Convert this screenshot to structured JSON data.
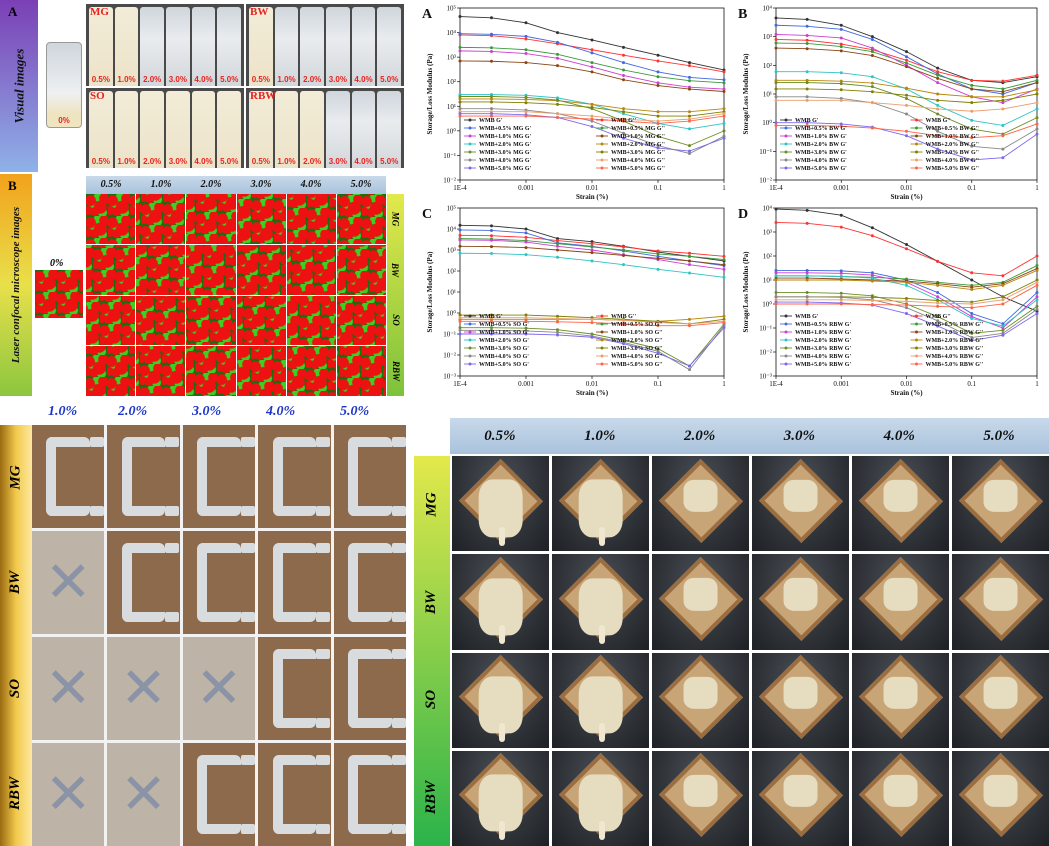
{
  "panelA": {
    "letter": "A",
    "side_label": "Visual images",
    "control_label": "0%",
    "groups": [
      {
        "name": "MG",
        "labels": [
          "0.5%",
          "1.0%",
          "2.0%",
          "3.0%",
          "4.0%",
          "5.0%"
        ]
      },
      {
        "name": "BW",
        "labels": [
          "0.5%",
          "1.0%",
          "2.0%",
          "3.0%",
          "4.0%",
          "5.0%"
        ]
      },
      {
        "name": "SO",
        "labels": [
          "0.5%",
          "1.0%",
          "2.0%",
          "3.0%",
          "4.0%",
          "5.0%"
        ]
      },
      {
        "name": "RBW",
        "labels": [
          "0.5%",
          "1.0%",
          "2.0%",
          "3.0%",
          "4.0%",
          "5.0%"
        ]
      }
    ]
  },
  "panelB": {
    "letter": "B",
    "side_label": "Laser confocal microscope images",
    "control_label": "0%",
    "columns": [
      "0.5%",
      "1.0%",
      "2.0%",
      "3.0%",
      "4.0%",
      "5.0%"
    ],
    "rows": [
      "MG",
      "BW",
      "SO",
      "RBW"
    ]
  },
  "colors": {
    "G_prime": [
      "#333333",
      "#4169e1",
      "#cc3fd1",
      "#2fc4c4",
      "#6b8e23",
      "#888888",
      "#7b68ee"
    ],
    "G_double": [
      "#ff3333",
      "#3a9a3a",
      "#8b4513",
      "#b8860b",
      "#808000",
      "#e8a070",
      "#ff6347"
    ]
  },
  "chart_data": [
    {
      "type": "line",
      "letter": "A",
      "xlabel": "Strain (%)",
      "ylabel": "Storage/Loss Modulus (Pa)",
      "x_scale": "log",
      "y_scale": "log",
      "xlim": [
        0.0001,
        1
      ],
      "ylim": [
        0.01,
        100000
      ],
      "x_ticks": [
        "1E-4",
        "0.001",
        "0.01",
        "0.1",
        "1"
      ],
      "y_ticks": [
        "10⁻²",
        "10⁻¹",
        "10⁰",
        "10¹",
        "10²",
        "10³",
        "10⁴",
        "10⁵"
      ],
      "x": [
        0.0001,
        0.0003,
        0.001,
        0.003,
        0.01,
        0.03,
        0.1,
        0.3,
        1
      ],
      "series": [
        {
          "name": "WMB G'",
          "values": [
            45000,
            40000,
            25000,
            10000,
            5000,
            2500,
            1200,
            600,
            300
          ]
        },
        {
          "name": "WMB G''",
          "values": [
            8000,
            7500,
            5500,
            3500,
            2000,
            1200,
            700,
            450,
            250
          ]
        },
        {
          "name": "WMB+0.5% MG G'",
          "values": [
            9000,
            8500,
            7000,
            4000,
            1500,
            600,
            250,
            150,
            120
          ]
        },
        {
          "name": "WMB+0.5% MG G''",
          "values": [
            2500,
            2400,
            2000,
            1300,
            600,
            300,
            160,
            110,
            90
          ]
        },
        {
          "name": "WMB+1.0% MG G'",
          "values": [
            1800,
            1700,
            1400,
            900,
            400,
            180,
            90,
            60,
            50
          ]
        },
        {
          "name": "WMB+1.0% MG G''",
          "values": [
            700,
            680,
            600,
            450,
            250,
            120,
            70,
            50,
            40
          ]
        },
        {
          "name": "WMB+2.0% MG G'",
          "values": [
            30,
            30,
            28,
            22,
            12,
            5,
            2,
            1.2,
            2
          ]
        },
        {
          "name": "WMB+2.0% MG G''",
          "values": [
            20,
            20,
            19,
            17,
            12,
            8,
            6,
            6,
            8
          ]
        },
        {
          "name": "WMB+3.0% MG G'",
          "values": [
            25,
            25,
            23,
            18,
            8,
            2.5,
            0.6,
            0.25,
            1
          ]
        },
        {
          "name": "WMB+3.0% MG G''",
          "values": [
            15,
            15,
            14,
            12,
            9,
            6,
            4,
            4,
            6
          ]
        },
        {
          "name": "WMB+4.0% MG G'",
          "values": [
            8,
            8,
            7,
            5,
            2.5,
            0.8,
            0.25,
            0.12,
            0.6
          ]
        },
        {
          "name": "WMB+4.0% MG G''",
          "values": [
            6,
            6,
            6,
            5,
            4,
            3,
            2.5,
            3,
            5
          ]
        },
        {
          "name": "WMB+5.0% MG G'",
          "values": [
            5,
            5,
            4.5,
            3.5,
            1.5,
            0.5,
            0.2,
            0.15,
            0.5
          ]
        },
        {
          "name": "WMB+5.0% MG G''",
          "values": [
            4,
            4,
            4,
            3.5,
            3,
            2.5,
            2,
            2.5,
            4
          ]
        }
      ]
    },
    {
      "type": "line",
      "letter": "B",
      "xlabel": "Strain (%)",
      "ylabel": "Storage/Loss Modulus (Pa)",
      "x_scale": "log",
      "y_scale": "log",
      "xlim": [
        0.0001,
        1
      ],
      "ylim": [
        0.01,
        10000
      ],
      "x_ticks": [
        "1E-4",
        "0.001",
        "0.01",
        "0.1",
        "1"
      ],
      "y_ticks": [
        "10⁻²",
        "10⁻¹",
        "10⁰",
        "10¹",
        "10²",
        "10³",
        "10⁴"
      ],
      "x": [
        0.0001,
        0.0003,
        0.001,
        0.003,
        0.01,
        0.03,
        0.1,
        0.3,
        1
      ],
      "series": [
        {
          "name": "WMB G'",
          "values": [
            4500,
            4000,
            2500,
            1000,
            300,
            80,
            30,
            25,
            40
          ]
        },
        {
          "name": "WMB G''",
          "values": [
            800,
            750,
            550,
            350,
            150,
            60,
            30,
            28,
            45
          ]
        },
        {
          "name": "WMB+0.5% BW G'",
          "values": [
            2500,
            2300,
            1800,
            800,
            200,
            50,
            15,
            10,
            25
          ]
        },
        {
          "name": "WMB+0.5% BW G''",
          "values": [
            600,
            580,
            450,
            300,
            120,
            45,
            20,
            15,
            30
          ]
        },
        {
          "name": "WMB+1.0% BW G'",
          "values": [
            1200,
            1100,
            900,
            400,
            100,
            25,
            8,
            5,
            15
          ]
        },
        {
          "name": "WMB+1.0% BW G''",
          "values": [
            400,
            380,
            320,
            220,
            90,
            35,
            15,
            12,
            25
          ]
        },
        {
          "name": "WMB+2.0% BW G'",
          "values": [
            60,
            60,
            55,
            40,
            15,
            4,
            1.2,
            0.8,
            3
          ]
        },
        {
          "name": "WMB+2.0% BW G''",
          "values": [
            30,
            30,
            28,
            24,
            16,
            10,
            8,
            8,
            14
          ]
        },
        {
          "name": "WMB+3.0% BW G'",
          "values": [
            25,
            25,
            23,
            18,
            7,
            2,
            0.6,
            0.4,
            1.5
          ]
        },
        {
          "name": "WMB+3.0% BW G''",
          "values": [
            15,
            15,
            14,
            12,
            9,
            6,
            5,
            6,
            10
          ]
        },
        {
          "name": "WMB+4.0% BW G'",
          "values": [
            8,
            8,
            7,
            5,
            2,
            0.5,
            0.15,
            0.12,
            0.6
          ]
        },
        {
          "name": "WMB+4.0% BW G''",
          "values": [
            6,
            6,
            6,
            5,
            4,
            3,
            2.5,
            3,
            5
          ]
        },
        {
          "name": "WMB+5.0% BW G'",
          "values": [
            1,
            1,
            0.9,
            0.7,
            0.35,
            0.12,
            0.05,
            0.06,
            0.4
          ]
        },
        {
          "name": "WMB+5.0% BW G''",
          "values": [
            0.8,
            0.8,
            0.75,
            0.65,
            0.5,
            0.35,
            0.3,
            0.35,
            0.9
          ]
        }
      ]
    },
    {
      "type": "line",
      "letter": "C",
      "xlabel": "Strain (%)",
      "ylabel": "Storage/Loss Modulus (Pa)",
      "x_scale": "log",
      "y_scale": "log",
      "xlim": [
        0.0001,
        1
      ],
      "ylim": [
        0.001,
        100000
      ],
      "x_ticks": [
        "1E-4",
        "0.001",
        "0.01",
        "0.1",
        "1"
      ],
      "y_ticks": [
        "10⁻³",
        "10⁻²",
        "10⁻¹",
        "10⁰",
        "10¹",
        "10²",
        "10³",
        "10⁴",
        "10⁵"
      ],
      "x": [
        0.0001,
        0.0003,
        0.001,
        0.003,
        0.01,
        0.03,
        0.1,
        0.3,
        1
      ],
      "series": [
        {
          "name": "WMB G'",
          "values": [
            15000,
            14000,
            10000,
            3500,
            2500,
            1500,
            800,
            500,
            300
          ]
        },
        {
          "name": "WMB G''",
          "values": [
            5000,
            4800,
            4000,
            2800,
            2000,
            1400,
            900,
            700,
            500
          ]
        },
        {
          "name": "WMB+0.5% SO G'",
          "values": [
            9000,
            8500,
            6500,
            2200,
            1500,
            900,
            500,
            300,
            180
          ]
        },
        {
          "name": "WMB+0.5% SO G''",
          "values": [
            3500,
            3300,
            2800,
            2000,
            1400,
            1000,
            650,
            500,
            350
          ]
        },
        {
          "name": "WMB+1.0% SO G'",
          "values": [
            3000,
            2900,
            2400,
            1500,
            1000,
            600,
            350,
            200,
            120
          ]
        },
        {
          "name": "WMB+1.0% SO G''",
          "values": [
            1500,
            1450,
            1300,
            1000,
            750,
            550,
            400,
            300,
            200
          ]
        },
        {
          "name": "WMB+2.0% SO G'",
          "values": [
            700,
            680,
            600,
            450,
            300,
            200,
            120,
            80,
            50
          ]
        },
        {
          "name": "WMB+2.0% SO G''",
          "values": [
            0.5,
            0.5,
            0.5,
            0.5,
            0.5,
            0.45,
            0.4,
            0.5,
            0.7
          ]
        },
        {
          "name": "WMB+3.0% SO G'",
          "values": [
            0.2,
            0.2,
            0.19,
            0.16,
            0.1,
            0.05,
            0.02,
            0.003,
            0.3
          ]
        },
        {
          "name": "WMB+3.0% SO G''",
          "values": [
            0.8,
            0.8,
            0.8,
            0.7,
            0.6,
            0.5,
            0.4,
            0.3,
            0.5
          ]
        },
        {
          "name": "WMB+4.0% SO G'",
          "values": [
            0.15,
            0.15,
            0.14,
            0.12,
            0.08,
            0.04,
            0.015,
            0.002,
            0.25
          ]
        },
        {
          "name": "WMB+4.0% SO G''",
          "values": [
            0.6,
            0.6,
            0.6,
            0.55,
            0.5,
            0.45,
            0.35,
            0.3,
            0.4
          ]
        },
        {
          "name": "WMB+5.0% SO G'",
          "values": [
            0.1,
            0.1,
            0.1,
            0.09,
            0.07,
            0.035,
            0.012,
            0.003,
            0.2
          ]
        },
        {
          "name": "WMB+5.0% SO G''",
          "values": [
            0.4,
            0.4,
            0.4,
            0.38,
            0.35,
            0.3,
            0.25,
            0.25,
            0.35
          ]
        }
      ]
    },
    {
      "type": "line",
      "letter": "D",
      "xlabel": "Strain (%)",
      "ylabel": "Storage/Loss Modulus (Pa)",
      "x_scale": "log",
      "y_scale": "log",
      "xlim": [
        0.0001,
        1
      ],
      "ylim": [
        0.001,
        10000
      ],
      "x_ticks": [
        "1E-4",
        "0.001",
        "0.01",
        "0.1",
        "1"
      ],
      "y_ticks": [
        "10⁻³",
        "10⁻²",
        "10⁻¹",
        "10⁰",
        "10¹",
        "10²",
        "10³",
        "10⁴"
      ],
      "x": [
        0.0001,
        0.0003,
        0.001,
        0.003,
        0.01,
        0.03,
        0.1,
        0.3,
        1
      ],
      "series": [
        {
          "name": "WMB G'",
          "values": [
            9000,
            8000,
            5000,
            1500,
            300,
            60,
            10,
            2,
            0.5
          ]
        },
        {
          "name": "WMB G''",
          "values": [
            2500,
            2300,
            1600,
            700,
            200,
            60,
            20,
            15,
            100
          ]
        },
        {
          "name": "WMB+0.5% RBW G'",
          "values": [
            25,
            25,
            24,
            20,
            10,
            3,
            0.4,
            0.15,
            3
          ]
        },
        {
          "name": "WMB+0.5% RBW G''",
          "values": [
            15,
            15,
            14,
            13,
            11,
            8,
            6,
            8,
            40
          ]
        },
        {
          "name": "WMB+1.0% RBW G'",
          "values": [
            20,
            20,
            19,
            16,
            8,
            2,
            0.3,
            0.1,
            2
          ]
        },
        {
          "name": "WMB+1.0% RBW G''",
          "values": [
            12,
            12,
            11,
            10,
            9,
            7,
            5,
            7,
            30
          ]
        },
        {
          "name": "WMB+2.0% RBW G'",
          "values": [
            15,
            15,
            14,
            12,
            6,
            1.5,
            0.25,
            0.12,
            1.5
          ]
        },
        {
          "name": "WMB+2.0% RBW G''",
          "values": [
            10,
            10,
            10,
            9,
            8,
            6,
            4,
            6,
            25
          ]
        },
        {
          "name": "WMB+3.0% RBW G'",
          "values": [
            3,
            3,
            2.8,
            2.2,
            1,
            0.3,
            0.06,
            0.08,
            0.8
          ]
        },
        {
          "name": "WMB+3.0% RBW G''",
          "values": [
            2,
            2,
            2,
            1.9,
            1.7,
            1.4,
            1.2,
            2,
            10
          ]
        },
        {
          "name": "WMB+4.0% RBW G'",
          "values": [
            2,
            2,
            1.9,
            1.5,
            0.7,
            0.2,
            0.04,
            0.06,
            0.6
          ]
        },
        {
          "name": "WMB+4.0% RBW G''",
          "values": [
            1.5,
            1.5,
            1.5,
            1.4,
            1.3,
            1.1,
            1,
            1.5,
            8
          ]
        },
        {
          "name": "WMB+5.0% RBW G'",
          "values": [
            1.2,
            1.2,
            1.1,
            0.9,
            0.4,
            0.12,
            0.03,
            0.05,
            0.4
          ]
        },
        {
          "name": "WMB+5.0% RBW G''",
          "values": [
            1,
            1,
            1,
            0.95,
            0.9,
            0.8,
            0.7,
            1,
            6
          ]
        }
      ]
    }
  ],
  "printing": {
    "columns": [
      "1.0%",
      "2.0%",
      "3.0%",
      "4.0%",
      "5.0%"
    ],
    "rows": [
      {
        "label": "MG",
        "cells": [
          "print",
          "print",
          "print",
          "print",
          "print"
        ]
      },
      {
        "label": "BW",
        "cells": [
          "fail",
          "print",
          "print",
          "print",
          "print"
        ]
      },
      {
        "label": "SO",
        "cells": [
          "fail",
          "fail",
          "fail",
          "print",
          "print"
        ]
      },
      {
        "label": "RBW",
        "cells": [
          "fail",
          "fail",
          "print",
          "print",
          "print"
        ]
      }
    ],
    "fail_glyph": "✕"
  },
  "bread": {
    "columns": [
      "0.5%",
      "1.0%",
      "2.0%",
      "3.0%",
      "4.0%",
      "5.0%"
    ],
    "rows": [
      "MG",
      "BW",
      "SO",
      "RBW"
    ]
  }
}
